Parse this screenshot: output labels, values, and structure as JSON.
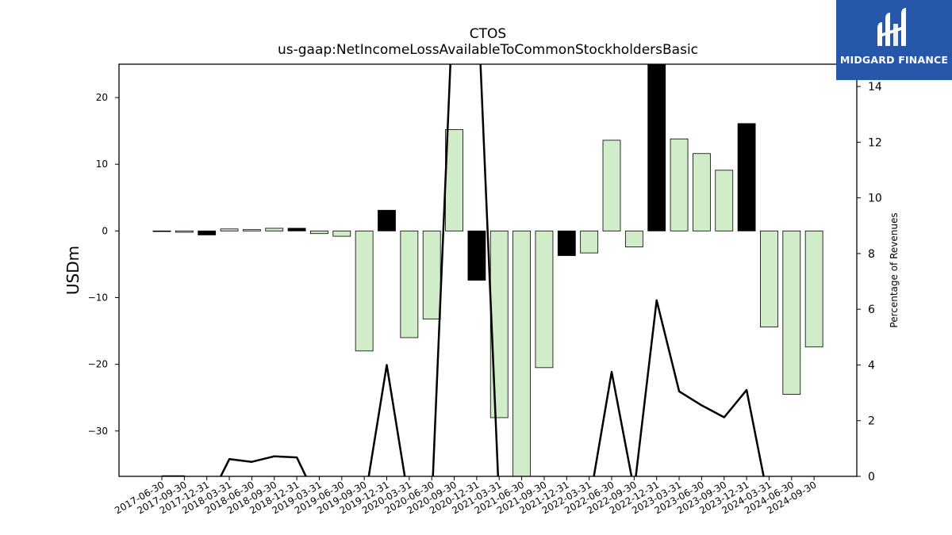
{
  "chart_data": {
    "type": "bar",
    "title": "CTOS",
    "subtitle": "us-gaap:NetIncomeLossAvailableToCommonStockholdersBasic",
    "ylabel": "USDm",
    "y2label": "Percentage of Revenues",
    "ylim": [
      -36.8,
      25
    ],
    "y2lim": [
      0,
      14.8
    ],
    "yticks": [
      20,
      10,
      0,
      -10,
      -20,
      -30
    ],
    "y2ticks": [
      0,
      2,
      4,
      6,
      8,
      10,
      12,
      14
    ],
    "categories": [
      "2017-06-30",
      "2017-09-30",
      "2017-12-31",
      "2018-03-31",
      "2018-06-30",
      "2018-09-30",
      "2018-12-31",
      "2019-03-31",
      "2019-06-30",
      "2019-09-30",
      "2019-12-31",
      "2020-03-31",
      "2020-06-30",
      "2020-09-30",
      "2020-12-31",
      "2021-03-31",
      "2021-06-30",
      "2021-09-30",
      "2021-12-31",
      "2022-03-31",
      "2022-06-30",
      "2022-09-30",
      "2022-12-31",
      "2023-03-31",
      "2023-06-30",
      "2023-09-30",
      "2023-12-31",
      "2024-03-31",
      "2024-06-30",
      "2024-09-30"
    ],
    "values": [
      0,
      -0.2,
      -0.6,
      0.3,
      0.2,
      0.4,
      0.4,
      -0.4,
      -0.8,
      -18,
      3.1,
      -16,
      -13.2,
      15.2,
      -7.4,
      -28,
      -37.5,
      -20.5,
      -3.7,
      -3.3,
      13.6,
      -2.4,
      28,
      13.8,
      11.6,
      9.1,
      16.1,
      -14.4,
      -24.5,
      -17.4
    ],
    "bar_colors": [
      "#d0ecc8",
      "#d0ecc8",
      "#000000",
      "#d0ecc8",
      "#d0ecc8",
      "#d0ecc8",
      "#000000",
      "#d0ecc8",
      "#d0ecc8",
      "#d0ecc8",
      "#000000",
      "#d0ecc8",
      "#d0ecc8",
      "#d0ecc8",
      "#000000",
      "#d0ecc8",
      "#d0ecc8",
      "#d0ecc8",
      "#000000",
      "#d0ecc8",
      "#d0ecc8",
      "#d0ecc8",
      "#000000",
      "#d0ecc8",
      "#d0ecc8",
      "#d0ecc8",
      "#000000",
      "#d0ecc8",
      "#d0ecc8",
      "#d0ecc8"
    ],
    "line_series": {
      "name": "Percentage of Revenues",
      "values": [
        0,
        0,
        -1,
        0.62,
        0.52,
        0.72,
        0.68,
        -1,
        -1,
        -1,
        4.0,
        -1,
        -1,
        18,
        18,
        -1,
        -1,
        -1,
        -1,
        -1,
        3.75,
        -0.5,
        6.32,
        3.05,
        2.55,
        2.12,
        3.1,
        -1,
        -1,
        -1
      ]
    },
    "grid": false,
    "colors": {
      "positive_bar": "#d0ecc8",
      "highlight_bar": "#000000",
      "line": "#000000"
    }
  },
  "logo": {
    "text": "MIDGARD FINANCE",
    "bg_color": "#2757a8",
    "icon": "mf-monogram-icon"
  }
}
